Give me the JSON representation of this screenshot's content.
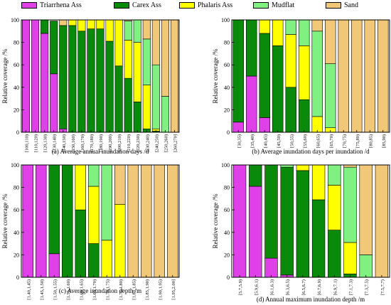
{
  "legend": [
    {
      "name": "Triarrhena Ass",
      "color": "#e040e8"
    },
    {
      "name": "Carex Ass",
      "color": "#0a8a0a"
    },
    {
      "name": "Phalaris Ass",
      "color": "#ffff00"
    },
    {
      "name": "Mudflat",
      "color": "#80f080"
    },
    {
      "name": "Sand",
      "color": "#f0c878"
    }
  ],
  "chart_data": [
    {
      "type": "bar",
      "stacked": true,
      "caption": "(a) Average annual  inundation days /d",
      "ylabel": "Relative coverage /%",
      "ylim": [
        0,
        100
      ],
      "yticks": [
        "0",
        "20",
        "40",
        "60",
        "80",
        "100"
      ],
      "categories": [
        "[100,110)",
        "[110,120)",
        "[120,130)",
        "[130,140)",
        "[140,150)",
        "[150,160)",
        "[160,170)",
        "[170,180)",
        "[180,190)",
        "[190,200)",
        "[200,210)",
        "[210,220)",
        "[220,230)",
        "[230,240)",
        "[240,250)",
        "[250,260)",
        "[260,270]"
      ],
      "series": [
        {
          "name": "Triarrhena Ass",
          "values": [
            100,
            100,
            88,
            52,
            3,
            0,
            0,
            0,
            0,
            0,
            0,
            0,
            0,
            0,
            0,
            0,
            0
          ]
        },
        {
          "name": "Carex Ass",
          "values": [
            0,
            0,
            12,
            47,
            92,
            95,
            90,
            92,
            92,
            81,
            59,
            48,
            27,
            3,
            1,
            0,
            0
          ]
        },
        {
          "name": "Phalaris Ass",
          "values": [
            0,
            0,
            0,
            0,
            0,
            5,
            10,
            8,
            8,
            19,
            41,
            34,
            53,
            39,
            2,
            0,
            0
          ]
        },
        {
          "name": "Mudflat",
          "values": [
            0,
            0,
            0,
            0,
            0,
            0,
            0,
            0,
            0,
            0,
            0,
            17,
            20,
            41,
            57,
            32,
            0
          ]
        },
        {
          "name": "Sand",
          "values": [
            0,
            0,
            0,
            0,
            5,
            0,
            0,
            0,
            0,
            0,
            0,
            1,
            0,
            17,
            40,
            68,
            100
          ]
        }
      ]
    },
    {
      "type": "bar",
      "stacked": true,
      "caption": "(b) Average inundation days per inundation /d",
      "ylabel": "Relative coverage /%",
      "ylim": [
        0,
        100
      ],
      "yticks": [
        "0",
        "20",
        "40",
        "60",
        "80",
        "100"
      ],
      "categories": [
        "[30,35)",
        "[35,40)",
        "[40,45)",
        "[45,50)",
        "[50,55)",
        "[55,60)",
        "[60,65)",
        "[65,70)",
        "[70,75)",
        "[75,80)",
        "[80,85)",
        "[85,90)"
      ],
      "series": [
        {
          "name": "Triarrhena Ass",
          "values": [
            9,
            50,
            13,
            0,
            0,
            0,
            0,
            0,
            0,
            0,
            0,
            0
          ]
        },
        {
          "name": "Carex Ass",
          "values": [
            91,
            50,
            75,
            77,
            40,
            29,
            0,
            0,
            0,
            0,
            0,
            0
          ]
        },
        {
          "name": "Phalaris Ass",
          "values": [
            0,
            0,
            12,
            23,
            47,
            48,
            14,
            4,
            0,
            0,
            0,
            0
          ]
        },
        {
          "name": "Mudflat",
          "values": [
            0,
            0,
            0,
            0,
            13,
            23,
            76,
            57,
            0,
            0,
            0,
            0
          ]
        },
        {
          "name": "Sand",
          "values": [
            0,
            0,
            0,
            0,
            0,
            0,
            10,
            39,
            100,
            100,
            100,
            100
          ]
        }
      ]
    },
    {
      "type": "bar",
      "stacked": true,
      "caption": "(c) Average inundation depth /m",
      "ylabel": "Relative coverage /%",
      "ylim": [
        0,
        100
      ],
      "yticks": [
        "0",
        "20",
        "40",
        "60",
        "80",
        "100"
      ],
      "categories": [
        "[1.40,1.45)",
        "[1.45,1.50)",
        "[1.50,1.55)",
        "[1.55,1.60)",
        "[1.60,1.65)",
        "[1.65,1.70)",
        "[1.70,1.75)",
        "[1.75,1.80)",
        "[1.80,1.85)",
        "[1.85,1.90)",
        "[1.90,1.95)",
        "[1.95,2.00]"
      ],
      "series": [
        {
          "name": "Triarrhena Ass",
          "values": [
            100,
            100,
            21,
            0,
            0,
            0,
            0,
            0,
            0,
            0,
            0,
            0
          ]
        },
        {
          "name": "Carex Ass",
          "values": [
            0,
            0,
            79,
            100,
            60,
            30,
            0,
            0,
            0,
            0,
            0,
            0
          ]
        },
        {
          "name": "Phalaris Ass",
          "values": [
            0,
            0,
            0,
            0,
            40,
            51,
            33,
            65,
            0,
            0,
            0,
            0
          ]
        },
        {
          "name": "Mudflat",
          "values": [
            0,
            0,
            0,
            0,
            0,
            19,
            67,
            0,
            0,
            0,
            0,
            0
          ]
        },
        {
          "name": "Sand",
          "values": [
            0,
            0,
            0,
            0,
            0,
            0,
            0,
            35,
            100,
            100,
            100,
            100
          ]
        }
      ]
    },
    {
      "type": "bar",
      "stacked": true,
      "caption": "(d) Annual maximum inundation depth /m",
      "ylabel": "Relative coverage /%",
      "ylim": [
        0,
        100
      ],
      "yticks": [
        "0",
        "20",
        "40",
        "60",
        "80",
        "100"
      ],
      "categories": [
        "[5.7,5.9)",
        "[5.9,6.1)",
        "[6.1,6.3)",
        "[6.3,6.5)",
        "[6.5,6.7)",
        "[6.7,6.9)",
        "[6.9,7.1)",
        "[7.1,7.3)",
        "[7.3,7.5)",
        "[7.5,7.7)"
      ],
      "series": [
        {
          "name": "Triarrhena Ass",
          "values": [
            100,
            81,
            17,
            2,
            0,
            0,
            0,
            0,
            0,
            0
          ]
        },
        {
          "name": "Carex Ass",
          "values": [
            0,
            19,
            83,
            96,
            95,
            69,
            42,
            3,
            0,
            0
          ]
        },
        {
          "name": "Phalaris Ass",
          "values": [
            0,
            0,
            0,
            0,
            5,
            31,
            40,
            28,
            0,
            0
          ]
        },
        {
          "name": "Mudflat",
          "values": [
            0,
            0,
            0,
            2,
            0,
            0,
            18,
            67,
            20,
            0
          ]
        },
        {
          "name": "Sand",
          "values": [
            0,
            0,
            0,
            0,
            0,
            0,
            0,
            2,
            80,
            100
          ]
        }
      ]
    }
  ]
}
